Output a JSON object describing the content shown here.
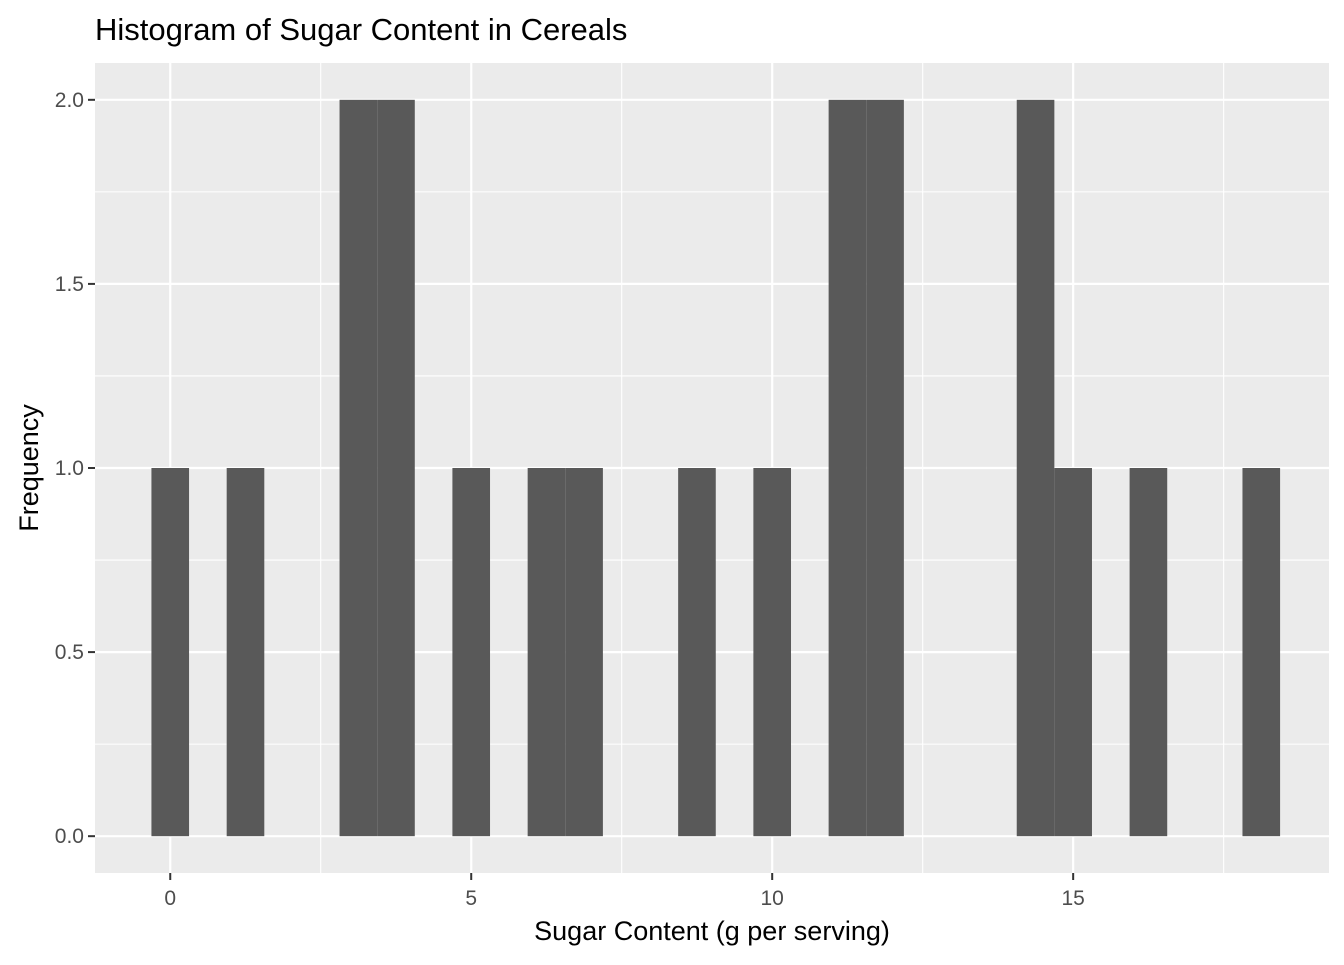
{
  "chart_data": {
    "type": "bar",
    "title": "Histogram of Sugar Content in Cereals",
    "xlabel": "Sugar Content (g per serving)",
    "ylabel": "Frequency",
    "xlim": [
      -1.25,
      19.25
    ],
    "ylim": [
      -0.1,
      2.1
    ],
    "x_ticks": [
      0,
      5,
      10,
      15
    ],
    "x_tick_labels": [
      "0",
      "5",
      "10",
      "15"
    ],
    "y_ticks": [
      0,
      0.5,
      1,
      1.5,
      2
    ],
    "y_tick_labels": [
      "0.0",
      "0.5",
      "1.0",
      "1.5",
      "2.0"
    ],
    "bin_width": 0.625,
    "bins": [
      {
        "x_start": -0.3125,
        "x_end": 0.3125,
        "count": 1
      },
      {
        "x_start": 0.9375,
        "x_end": 1.5625,
        "count": 1
      },
      {
        "x_start": 2.8125,
        "x_end": 3.4375,
        "count": 2
      },
      {
        "x_start": 3.4375,
        "x_end": 4.0625,
        "count": 2
      },
      {
        "x_start": 4.6875,
        "x_end": 5.3125,
        "count": 1
      },
      {
        "x_start": 5.9375,
        "x_end": 6.5625,
        "count": 1
      },
      {
        "x_start": 6.5625,
        "x_end": 7.1875,
        "count": 1
      },
      {
        "x_start": 8.4375,
        "x_end": 9.0625,
        "count": 1
      },
      {
        "x_start": 9.6875,
        "x_end": 10.3125,
        "count": 1
      },
      {
        "x_start": 10.9375,
        "x_end": 11.5625,
        "count": 2
      },
      {
        "x_start": 11.5625,
        "x_end": 12.1875,
        "count": 2
      },
      {
        "x_start": 14.0625,
        "x_end": 14.6875,
        "count": 2
      },
      {
        "x_start": 14.6875,
        "x_end": 15.3125,
        "count": 1
      },
      {
        "x_start": 15.9375,
        "x_end": 16.5625,
        "count": 1
      },
      {
        "x_start": 17.8125,
        "x_end": 18.4375,
        "count": 1
      }
    ],
    "grid": true,
    "bar_color": "#595959",
    "panel_color": "#ebebeb",
    "grid_color": "#ffffff"
  }
}
